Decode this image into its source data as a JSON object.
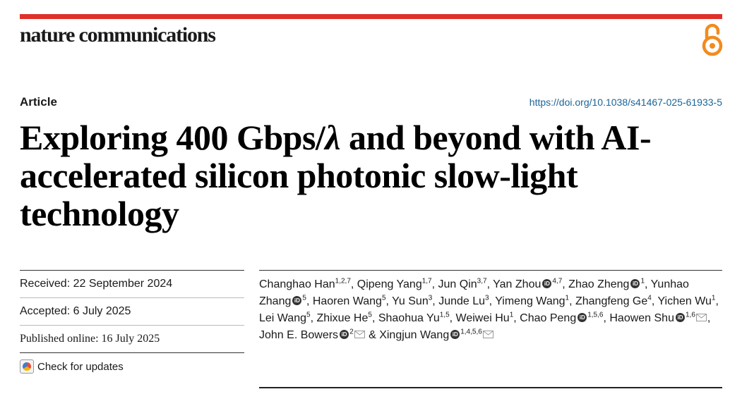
{
  "journal": "nature communications",
  "article_type": "Article",
  "doi": "https://doi.org/10.1038/s41467-025-61933-5",
  "title": {
    "before": "Exploring 400 Gbps/",
    "lambda": "λ",
    "after": " and beyond with AI-accelerated silicon photonic slow-light technology"
  },
  "meta": {
    "received": "Received: 22 September 2024",
    "accepted": "Accepted: 6 July 2025",
    "published": "Published online: 16 July 2025",
    "check_updates": "Check for updates"
  },
  "icons": {
    "open_access": "open-access-lock-icon",
    "orcid": "orcid-icon",
    "email": "envelope-icon",
    "updates": "check-for-updates-icon"
  },
  "colors": {
    "accent": "#e0302a",
    "open_access": "#f28b1e",
    "link": "#1a6496"
  },
  "authors": [
    {
      "name": "Changhao Han",
      "aff": "1,2,7",
      "orcid": false,
      "email": false,
      "sep": ", "
    },
    {
      "name": "Qipeng Yang",
      "aff": "1,7",
      "orcid": false,
      "email": false,
      "sep": ", "
    },
    {
      "name": "Jun Qin",
      "aff": "3,7",
      "orcid": false,
      "email": false,
      "sep": ", "
    },
    {
      "name": "Yan Zhou",
      "aff": "4,7",
      "orcid": true,
      "email": false,
      "sep": ", "
    },
    {
      "name": "Zhao Zheng",
      "aff": "1",
      "orcid": true,
      "email": false,
      "sep": ", "
    },
    {
      "name": "Yunhao Zhang",
      "aff": "5",
      "orcid": true,
      "email": false,
      "sep": ", "
    },
    {
      "name": "Haoren Wang",
      "aff": "5",
      "orcid": false,
      "email": false,
      "sep": ", "
    },
    {
      "name": "Yu Sun",
      "aff": "3",
      "orcid": false,
      "email": false,
      "sep": ", "
    },
    {
      "name": "Junde Lu",
      "aff": "3",
      "orcid": false,
      "email": false,
      "sep": ", "
    },
    {
      "name": "Yimeng Wang",
      "aff": "1",
      "orcid": false,
      "email": false,
      "sep": ", "
    },
    {
      "name": "Zhangfeng Ge",
      "aff": "4",
      "orcid": false,
      "email": false,
      "sep": ", "
    },
    {
      "name": "Yichen Wu",
      "aff": "1",
      "orcid": false,
      "email": false,
      "sep": ", "
    },
    {
      "name": "Lei Wang",
      "aff": "5",
      "orcid": false,
      "email": false,
      "sep": ", "
    },
    {
      "name": "Zhixue He",
      "aff": "5",
      "orcid": false,
      "email": false,
      "sep": ", "
    },
    {
      "name": "Shaohua Yu",
      "aff": "1,5",
      "orcid": false,
      "email": false,
      "sep": ", "
    },
    {
      "name": "Weiwei Hu",
      "aff": "1",
      "orcid": false,
      "email": false,
      "sep": ", "
    },
    {
      "name": "Chao Peng",
      "aff": "1,5,6",
      "orcid": true,
      "email": false,
      "sep": ", "
    },
    {
      "name": "Haowen Shu",
      "aff": "1,6",
      "orcid": true,
      "email": true,
      "sep": ", "
    },
    {
      "name": "John E. Bowers",
      "aff": "2",
      "orcid": true,
      "email": true,
      "sep": " & "
    },
    {
      "name": "Xingjun Wang",
      "aff": "1,4,5,6",
      "orcid": true,
      "email": true,
      "sep": ""
    }
  ]
}
